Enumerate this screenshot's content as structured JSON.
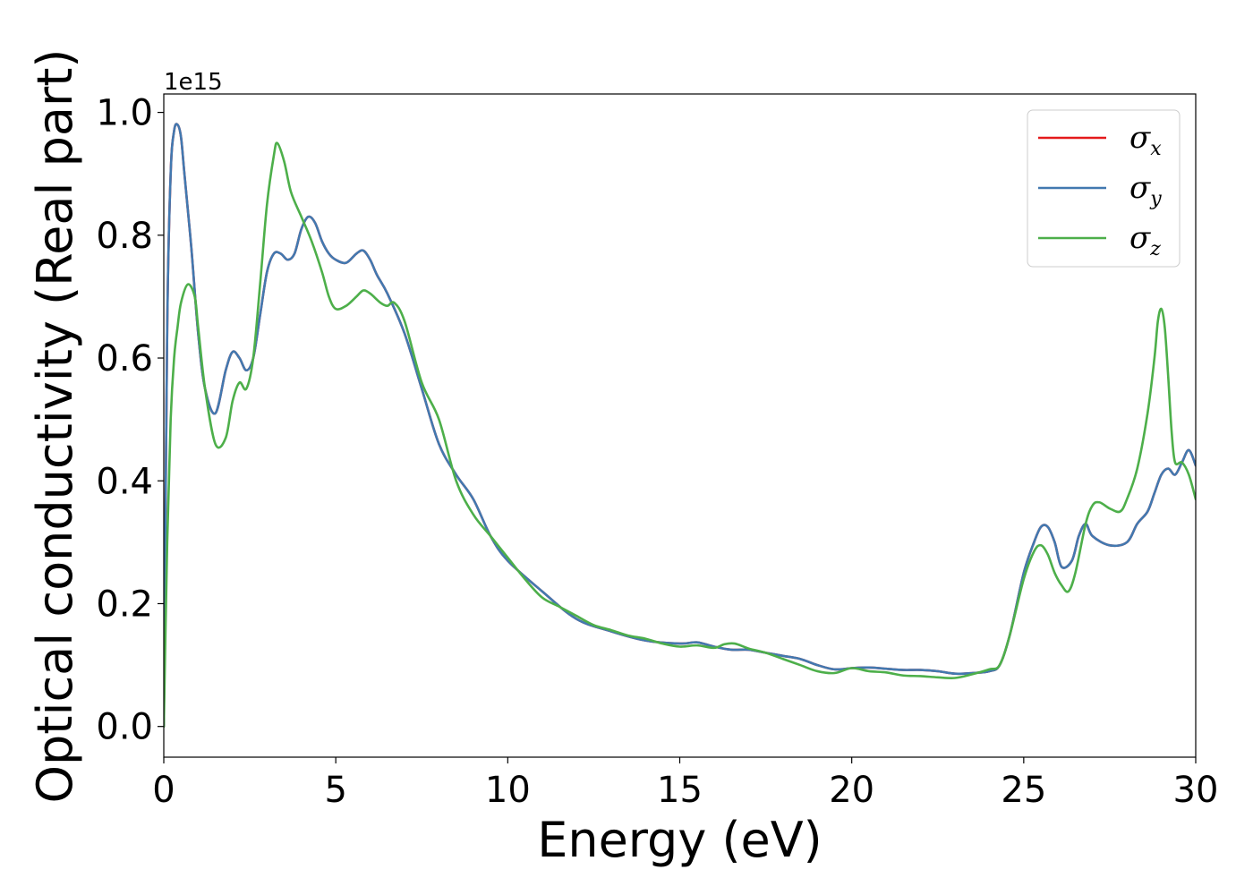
{
  "chart_data": {
    "type": "line",
    "title": "",
    "xlabel": "Energy (eV)",
    "ylabel": "Optical conductivity (Real part)",
    "y_offset_label": "1e15",
    "xlim": [
      0,
      30
    ],
    "ylim": [
      -0.05,
      1.03
    ],
    "xticks": [
      0,
      5,
      10,
      15,
      20,
      25,
      30
    ],
    "xtick_labels": [
      "0",
      "5",
      "10",
      "15",
      "20",
      "25",
      "30"
    ],
    "yticks": [
      0.0,
      0.2,
      0.4,
      0.6,
      0.8,
      1.0
    ],
    "ytick_labels": [
      "0.0",
      "0.2",
      "0.4",
      "0.6",
      "0.8",
      "1.0"
    ],
    "grid": false,
    "legend_position": "top-right",
    "series": [
      {
        "name": "σx",
        "symbol": "σ",
        "subscript": "x",
        "color": "#e41a1c",
        "x": [
          0,
          0.1,
          0.2,
          0.3,
          0.4,
          0.5,
          0.6,
          0.8,
          1.0,
          1.2,
          1.5,
          1.8,
          2.0,
          2.2,
          2.4,
          2.6,
          2.8,
          3.0,
          3.2,
          3.4,
          3.6,
          3.8,
          4.0,
          4.2,
          4.4,
          4.6,
          4.8,
          5.0,
          5.3,
          5.6,
          5.8,
          6.0,
          6.2,
          6.5,
          7.0,
          7.5,
          8.0,
          8.5,
          9.0,
          9.5,
          10.0,
          11.0,
          12.0,
          13.0,
          14.0,
          15.0,
          15.5,
          16.0,
          16.5,
          17.0,
          17.5,
          18.0,
          18.5,
          19.0,
          19.5,
          20.0,
          20.5,
          21.0,
          21.5,
          22.0,
          22.5,
          23.0,
          23.5,
          24.0,
          24.3,
          24.6,
          25.0,
          25.3,
          25.5,
          25.7,
          25.9,
          26.1,
          26.4,
          26.6,
          26.8,
          27.0,
          27.5,
          28.0,
          28.3,
          28.6,
          28.8,
          29.0,
          29.2,
          29.4,
          29.6,
          29.8,
          30.0
        ],
        "values": [
          0.0,
          0.65,
          0.9,
          0.97,
          0.98,
          0.96,
          0.9,
          0.78,
          0.64,
          0.55,
          0.51,
          0.58,
          0.61,
          0.6,
          0.58,
          0.6,
          0.67,
          0.74,
          0.77,
          0.77,
          0.76,
          0.77,
          0.81,
          0.83,
          0.82,
          0.79,
          0.77,
          0.76,
          0.755,
          0.77,
          0.775,
          0.76,
          0.735,
          0.705,
          0.64,
          0.55,
          0.46,
          0.41,
          0.37,
          0.31,
          0.27,
          0.22,
          0.175,
          0.155,
          0.14,
          0.135,
          0.137,
          0.13,
          0.125,
          0.125,
          0.12,
          0.115,
          0.11,
          0.1,
          0.093,
          0.095,
          0.096,
          0.094,
          0.092,
          0.092,
          0.09,
          0.086,
          0.087,
          0.09,
          0.1,
          0.15,
          0.25,
          0.3,
          0.325,
          0.325,
          0.3,
          0.26,
          0.27,
          0.31,
          0.33,
          0.31,
          0.295,
          0.3,
          0.33,
          0.35,
          0.38,
          0.41,
          0.42,
          0.41,
          0.43,
          0.45,
          0.425
        ]
      },
      {
        "name": "σy",
        "symbol": "σ",
        "subscript": "y",
        "color": "#4279b0",
        "x": [
          0,
          0.1,
          0.2,
          0.3,
          0.4,
          0.5,
          0.6,
          0.8,
          1.0,
          1.2,
          1.5,
          1.8,
          2.0,
          2.2,
          2.4,
          2.6,
          2.8,
          3.0,
          3.2,
          3.4,
          3.6,
          3.8,
          4.0,
          4.2,
          4.4,
          4.6,
          4.8,
          5.0,
          5.3,
          5.6,
          5.8,
          6.0,
          6.2,
          6.5,
          7.0,
          7.5,
          8.0,
          8.5,
          9.0,
          9.5,
          10.0,
          11.0,
          12.0,
          13.0,
          14.0,
          15.0,
          15.5,
          16.0,
          16.5,
          17.0,
          17.5,
          18.0,
          18.5,
          19.0,
          19.5,
          20.0,
          20.5,
          21.0,
          21.5,
          22.0,
          22.5,
          23.0,
          23.5,
          24.0,
          24.3,
          24.6,
          25.0,
          25.3,
          25.5,
          25.7,
          25.9,
          26.1,
          26.4,
          26.6,
          26.8,
          27.0,
          27.5,
          28.0,
          28.3,
          28.6,
          28.8,
          29.0,
          29.2,
          29.4,
          29.6,
          29.8,
          30.0
        ],
        "values": [
          0.0,
          0.65,
          0.9,
          0.97,
          0.98,
          0.96,
          0.9,
          0.78,
          0.64,
          0.55,
          0.51,
          0.58,
          0.61,
          0.6,
          0.58,
          0.6,
          0.67,
          0.74,
          0.77,
          0.77,
          0.76,
          0.77,
          0.81,
          0.83,
          0.82,
          0.79,
          0.77,
          0.76,
          0.755,
          0.77,
          0.775,
          0.76,
          0.735,
          0.705,
          0.64,
          0.55,
          0.46,
          0.41,
          0.37,
          0.31,
          0.27,
          0.22,
          0.175,
          0.155,
          0.14,
          0.135,
          0.137,
          0.13,
          0.125,
          0.125,
          0.12,
          0.115,
          0.11,
          0.1,
          0.093,
          0.095,
          0.096,
          0.094,
          0.092,
          0.092,
          0.09,
          0.086,
          0.087,
          0.09,
          0.1,
          0.15,
          0.25,
          0.3,
          0.325,
          0.325,
          0.3,
          0.26,
          0.27,
          0.31,
          0.33,
          0.31,
          0.295,
          0.3,
          0.33,
          0.35,
          0.38,
          0.41,
          0.42,
          0.41,
          0.43,
          0.45,
          0.425
        ]
      },
      {
        "name": "σz",
        "symbol": "σ",
        "subscript": "z",
        "color": "#4daf4a",
        "x": [
          0,
          0.1,
          0.2,
          0.3,
          0.4,
          0.5,
          0.7,
          0.9,
          1.0,
          1.2,
          1.5,
          1.8,
          2.0,
          2.2,
          2.4,
          2.6,
          2.8,
          3.0,
          3.2,
          3.3,
          3.5,
          3.7,
          4.0,
          4.3,
          4.6,
          4.8,
          5.0,
          5.3,
          5.6,
          5.8,
          6.0,
          6.3,
          6.5,
          6.7,
          7.0,
          7.5,
          8.0,
          8.5,
          9.0,
          9.5,
          10.0,
          10.5,
          11.0,
          11.5,
          12.0,
          12.5,
          13.0,
          13.5,
          14.0,
          14.5,
          15.0,
          15.5,
          16.0,
          16.3,
          16.6,
          17.0,
          17.5,
          18.0,
          18.5,
          19.0,
          19.5,
          20.0,
          20.5,
          21.0,
          21.5,
          22.0,
          22.5,
          23.0,
          23.5,
          24.0,
          24.3,
          24.6,
          25.0,
          25.3,
          25.5,
          25.7,
          25.9,
          26.1,
          26.3,
          26.5,
          26.8,
          27.0,
          27.2,
          27.5,
          27.8,
          28.0,
          28.3,
          28.6,
          28.8,
          28.9,
          29.0,
          29.1,
          29.2,
          29.3,
          29.4,
          29.6,
          29.8,
          30.0
        ],
        "values": [
          0.0,
          0.3,
          0.5,
          0.6,
          0.65,
          0.69,
          0.72,
          0.7,
          0.65,
          0.55,
          0.46,
          0.47,
          0.53,
          0.56,
          0.55,
          0.6,
          0.72,
          0.85,
          0.93,
          0.95,
          0.92,
          0.87,
          0.83,
          0.79,
          0.74,
          0.7,
          0.68,
          0.685,
          0.7,
          0.71,
          0.705,
          0.69,
          0.685,
          0.69,
          0.66,
          0.56,
          0.5,
          0.4,
          0.345,
          0.31,
          0.275,
          0.24,
          0.21,
          0.195,
          0.18,
          0.165,
          0.157,
          0.148,
          0.143,
          0.135,
          0.13,
          0.132,
          0.128,
          0.134,
          0.135,
          0.127,
          0.12,
          0.11,
          0.1,
          0.09,
          0.087,
          0.095,
          0.09,
          0.088,
          0.083,
          0.082,
          0.08,
          0.079,
          0.085,
          0.093,
          0.1,
          0.15,
          0.24,
          0.285,
          0.295,
          0.28,
          0.25,
          0.23,
          0.22,
          0.25,
          0.33,
          0.36,
          0.365,
          0.355,
          0.35,
          0.37,
          0.42,
          0.51,
          0.6,
          0.66,
          0.68,
          0.65,
          0.57,
          0.48,
          0.43,
          0.43,
          0.41,
          0.37
        ]
      }
    ]
  }
}
